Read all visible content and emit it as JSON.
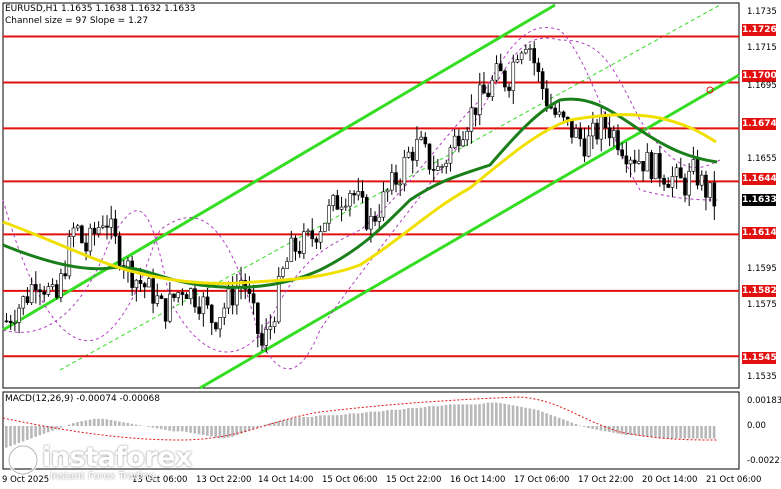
{
  "header": {
    "symbol_line": "EURUSD,H1  1.1635 1.1638 1.1632 1.1633",
    "channel_line": "Channel size = 97 Slope = 1.27",
    "macd_label": "MACD(12,26,9) -0.00074 -0.00068"
  },
  "levels": [
    "1.1726",
    "1.1700",
    "1.1674",
    "1.1644",
    "1.1614",
    "1.1582",
    "1.1545"
  ],
  "current_price": "1.1633",
  "y_ticks": [
    "1.1735",
    "1.1715",
    "1.1695",
    "1.1655",
    "1.1595",
    "1.1575",
    "1.1535"
  ],
  "macd_ticks": [
    "0.00183",
    "0.00",
    "-0.00221"
  ],
  "x_ticks": [
    "9 Oct 2025",
    "13 Oct 06:00",
    "13 Oct 22:00",
    "14 Oct 14:00",
    "15 Oct 06:00",
    "15 Oct 22:00",
    "16 Oct 14:00",
    "17 Oct 06:00",
    "17 Oct 22:00",
    "20 Oct 14:00",
    "21 Oct 06:00"
  ],
  "logo": {
    "brand": "instaforex",
    "tagline": "Instant Forex Trading"
  },
  "colors": {
    "level": "#e31010",
    "channel": "#33dd22",
    "ma_green": "#1a7f1a",
    "ma_yellow": "#f0e000",
    "bollinger": "#b040c0"
  },
  "chart_data": {
    "type": "candlestick",
    "symbol": "EURUSD",
    "timeframe": "H1",
    "ylim": [
      1.1527,
      1.1745
    ],
    "close_path": [
      1.1565,
      1.1572,
      1.1578,
      1.159,
      1.1584,
      1.1575,
      1.1598,
      1.162,
      1.1605,
      1.1615,
      1.1625,
      1.161,
      1.1598,
      1.159,
      1.1585,
      1.158,
      1.157,
      1.1578,
      1.1585,
      1.158,
      1.1575,
      1.1565,
      1.1572,
      1.158,
      1.159,
      1.157,
      1.155,
      1.1565,
      1.159,
      1.1605,
      1.1608,
      1.1612,
      1.162,
      1.1628,
      1.1635,
      1.164,
      1.163,
      1.162,
      1.163,
      1.164,
      1.1648,
      1.166,
      1.1665,
      1.1655,
      1.165,
      1.166,
      1.1672,
      1.168,
      1.169,
      1.1695,
      1.1705,
      1.17,
      1.172,
      1.1726,
      1.1705,
      1.169,
      1.168,
      1.1675,
      1.167,
      1.1665,
      1.1672,
      1.1676,
      1.167,
      1.1662,
      1.1658,
      1.1655,
      1.1652,
      1.1648,
      1.1645,
      1.1642,
      1.165,
      1.164,
      1.1633
    ],
    "macd": [
      -0.0012,
      -0.001,
      -0.0008,
      -0.0006,
      -0.0004,
      -0.0002,
      0.0,
      0.0002,
      0.0003,
      0.0004,
      0.0004,
      0.0003,
      0.0002,
      0.0001,
      0.0,
      -0.0001,
      -0.0002,
      -0.0003,
      -0.0003,
      -0.0004,
      -0.0005,
      -0.0006,
      -0.0007,
      -0.0006,
      -0.0004,
      -0.0002,
      0.0,
      0.0002,
      0.0003,
      0.0004,
      0.0005,
      0.0005,
      0.0006,
      0.0006,
      0.0006,
      0.0007,
      0.0007,
      0.0008,
      0.0008,
      0.0009,
      0.0009,
      0.001,
      0.001,
      0.0011,
      0.0011,
      0.0012,
      0.0012,
      0.0012,
      0.0012,
      0.0013,
      0.0013,
      0.0012,
      0.0011,
      0.001,
      0.0009,
      0.0007,
      0.0005,
      0.0003,
      0.0001,
      -0.0001,
      -0.0002,
      -0.0003,
      -0.0004,
      -0.0005,
      -0.0005,
      -0.0006,
      -0.0006,
      -0.0007,
      -0.0007,
      -0.0007,
      -0.0007,
      -0.0007,
      -0.0007
    ]
  }
}
